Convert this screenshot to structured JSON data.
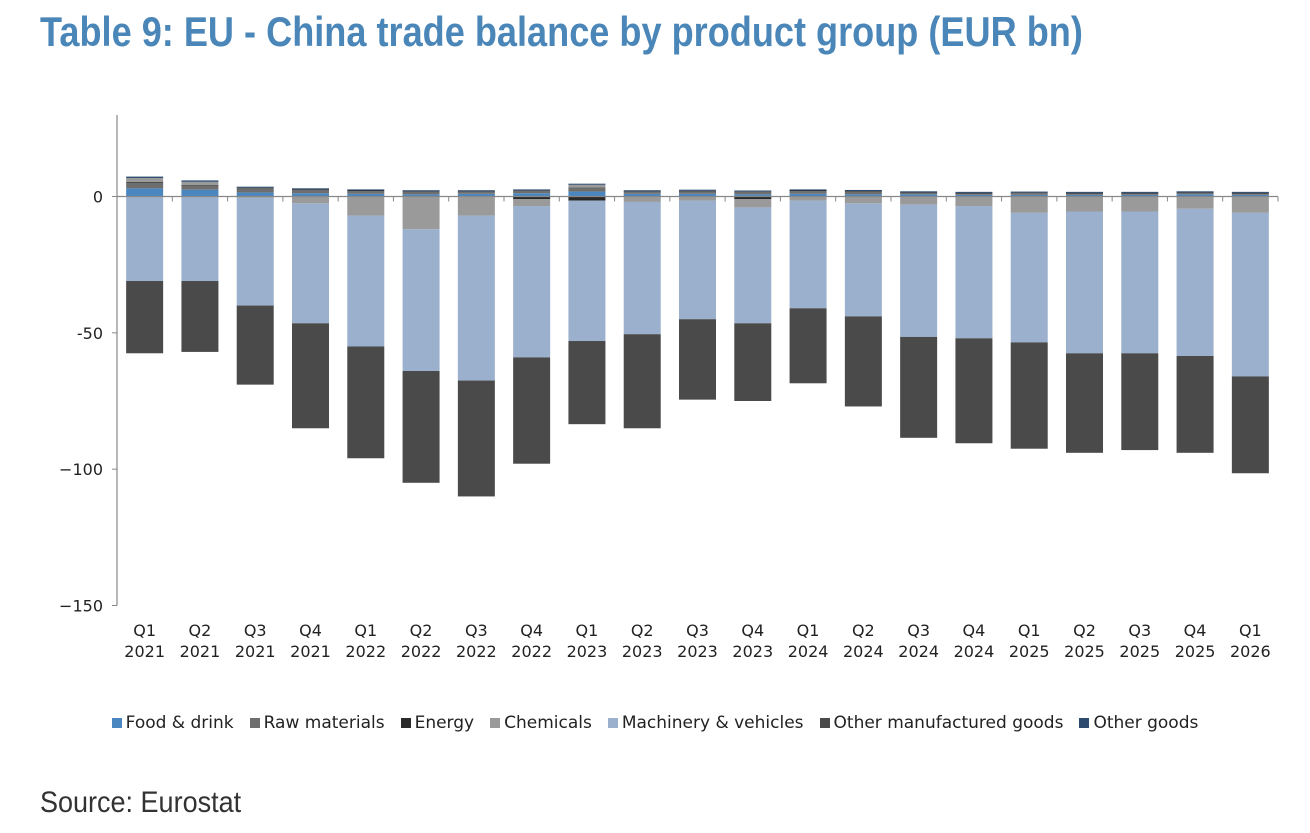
{
  "title": "Table 9: EU - China trade balance by product group (EUR bn)",
  "source": "Source: Eurostat",
  "chart_data": {
    "type": "bar",
    "stacked": true,
    "ylim": [
      -150,
      30
    ],
    "yticks": [
      0,
      -50,
      -100,
      -150
    ],
    "ytick_labels": [
      "0",
      "-50",
      "−100",
      "−150"
    ],
    "categories": [
      [
        "Q1",
        "2021"
      ],
      [
        "Q2",
        "2021"
      ],
      [
        "Q3",
        "2021"
      ],
      [
        "Q4",
        "2021"
      ],
      [
        "Q1",
        "2022"
      ],
      [
        "Q2",
        "2022"
      ],
      [
        "Q3",
        "2022"
      ],
      [
        "Q4",
        "2022"
      ],
      [
        "Q1",
        "2023"
      ],
      [
        "Q2",
        "2023"
      ],
      [
        "Q3",
        "2023"
      ],
      [
        "Q4",
        "2023"
      ],
      [
        "Q1",
        "2024"
      ],
      [
        "Q2",
        "2024"
      ],
      [
        "Q3",
        "2024"
      ],
      [
        "Q4",
        "2024"
      ],
      [
        "Q1",
        "2025"
      ],
      [
        "Q2",
        "2025"
      ],
      [
        "Q3",
        "2025"
      ],
      [
        "Q4",
        "2025"
      ],
      [
        "Q1",
        "2026"
      ]
    ],
    "legend_position": "bottom",
    "series": [
      {
        "name": "Food & drink",
        "color": "#4a86c0",
        "values": [
          3.0,
          2.5,
          1.5,
          1.2,
          1.0,
          0.8,
          1.0,
          1.2,
          1.8,
          1.0,
          1.0,
          0.8,
          1.0,
          0.8,
          0.8,
          0.6,
          0.6,
          0.6,
          0.6,
          0.8,
          0.6
        ]
      },
      {
        "name": "Raw materials",
        "color": "#6e6e6e",
        "values": [
          2.0,
          1.5,
          1.5,
          1.2,
          1.0,
          1.0,
          0.8,
          1.0,
          1.5,
          0.8,
          1.0,
          1.0,
          1.0,
          1.0,
          0.6,
          0.6,
          0.6,
          0.6,
          0.6,
          0.6,
          0.6
        ]
      },
      {
        "name": "Energy",
        "color": "#2a2a2a",
        "values": [
          0.3,
          0.2,
          0.2,
          0.2,
          0.2,
          0.1,
          0.1,
          -1.0,
          -1.5,
          0.1,
          0.1,
          -1.0,
          0.2,
          0.2,
          0.1,
          0.1,
          0.2,
          0.1,
          0.1,
          0.1,
          0.1
        ]
      },
      {
        "name": "Chemicals",
        "color": "#9a9a9a",
        "values": [
          1.5,
          1.2,
          -0.5,
          -2.5,
          -7.0,
          -12.0,
          -7.0,
          -2.5,
          1.0,
          -2.0,
          -1.5,
          -3.0,
          -1.5,
          -2.5,
          -3.0,
          -3.5,
          -6.0,
          -5.5,
          -5.5,
          -4.5,
          -6.0
        ]
      },
      {
        "name": "Machinery & vehicles",
        "color": "#9ab0cc",
        "values": [
          -31,
          -31,
          -39.5,
          -44,
          -48,
          -52,
          -60.5,
          -55.5,
          -51.5,
          -48.5,
          -43.5,
          -42.5,
          -39.5,
          -41.5,
          -48.5,
          -48.5,
          -47.5,
          -52,
          -52,
          -54,
          -60
        ]
      },
      {
        "name": "Other manufactured goods",
        "color": "#4a4a4a",
        "values": [
          -26.5,
          -26,
          -29,
          -38.5,
          -41,
          -41,
          -42.5,
          -39,
          -30.5,
          -34.5,
          -29.5,
          -28.5,
          -27.5,
          -33,
          -37,
          -38.5,
          -39,
          -36.5,
          -35.5,
          -35.5,
          -35.5
        ]
      },
      {
        "name": "Other goods",
        "color": "#2c4a6e",
        "values": [
          0.5,
          0.5,
          0.4,
          0.4,
          0.4,
          0.4,
          0.4,
          0.4,
          0.4,
          0.4,
          0.4,
          0.4,
          0.4,
          0.4,
          0.4,
          0.4,
          0.4,
          0.4,
          0.4,
          0.4,
          0.4
        ]
      }
    ]
  }
}
